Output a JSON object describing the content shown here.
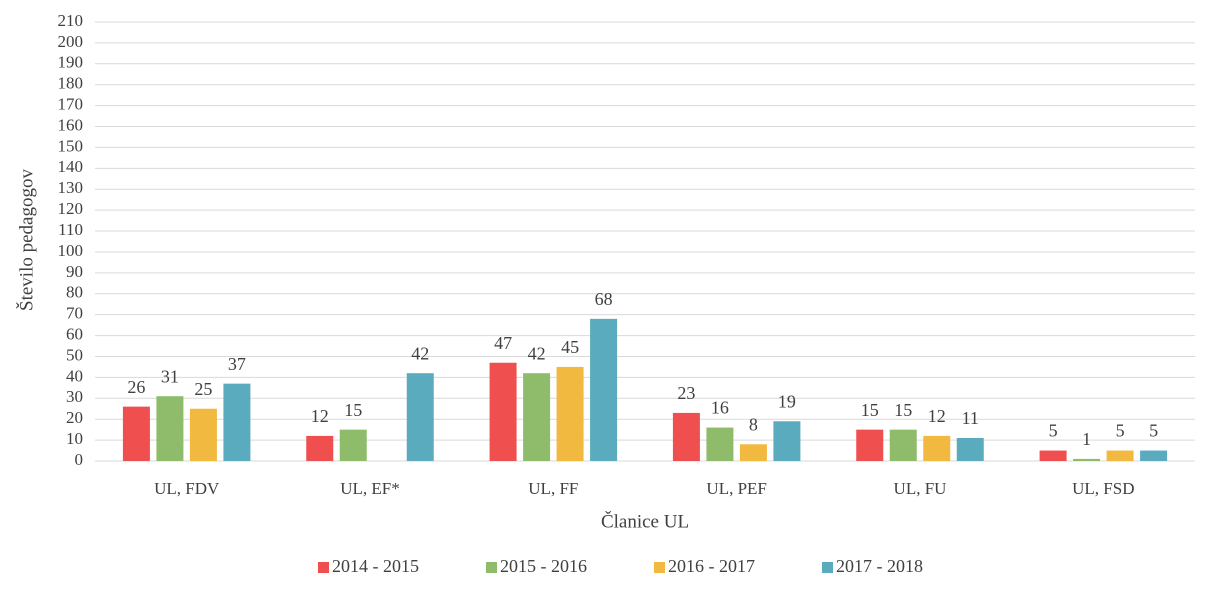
{
  "chart_data": {
    "type": "bar",
    "categories": [
      "UL, FDV",
      "UL, EF*",
      "UL, FF",
      "UL, PEF",
      "UL, FU",
      "UL, FSD"
    ],
    "series": [
      {
        "name": "2014 - 2015",
        "color": "#f04f4f",
        "values": [
          26,
          12,
          47,
          23,
          15,
          5
        ]
      },
      {
        "name": "2015 - 2016",
        "color": "#8fbc6b",
        "values": [
          31,
          15,
          42,
          16,
          15,
          1
        ]
      },
      {
        "name": "2016 - 2017",
        "color": "#f2b941",
        "values": [
          25,
          null,
          45,
          8,
          12,
          5
        ]
      },
      {
        "name": "2017 - 2018",
        "color": "#5aabbd",
        "values": [
          37,
          42,
          68,
          19,
          11,
          5
        ]
      }
    ],
    "xlabel": "Članice UL",
    "ylabel": "Število pedagogov",
    "ylim": [
      0,
      210
    ],
    "yticks": [
      0,
      10,
      20,
      30,
      40,
      50,
      60,
      70,
      80,
      90,
      100,
      110,
      120,
      130,
      140,
      150,
      160,
      170,
      180,
      190,
      200,
      210
    ],
    "grid": true,
    "legend": "bottom"
  }
}
